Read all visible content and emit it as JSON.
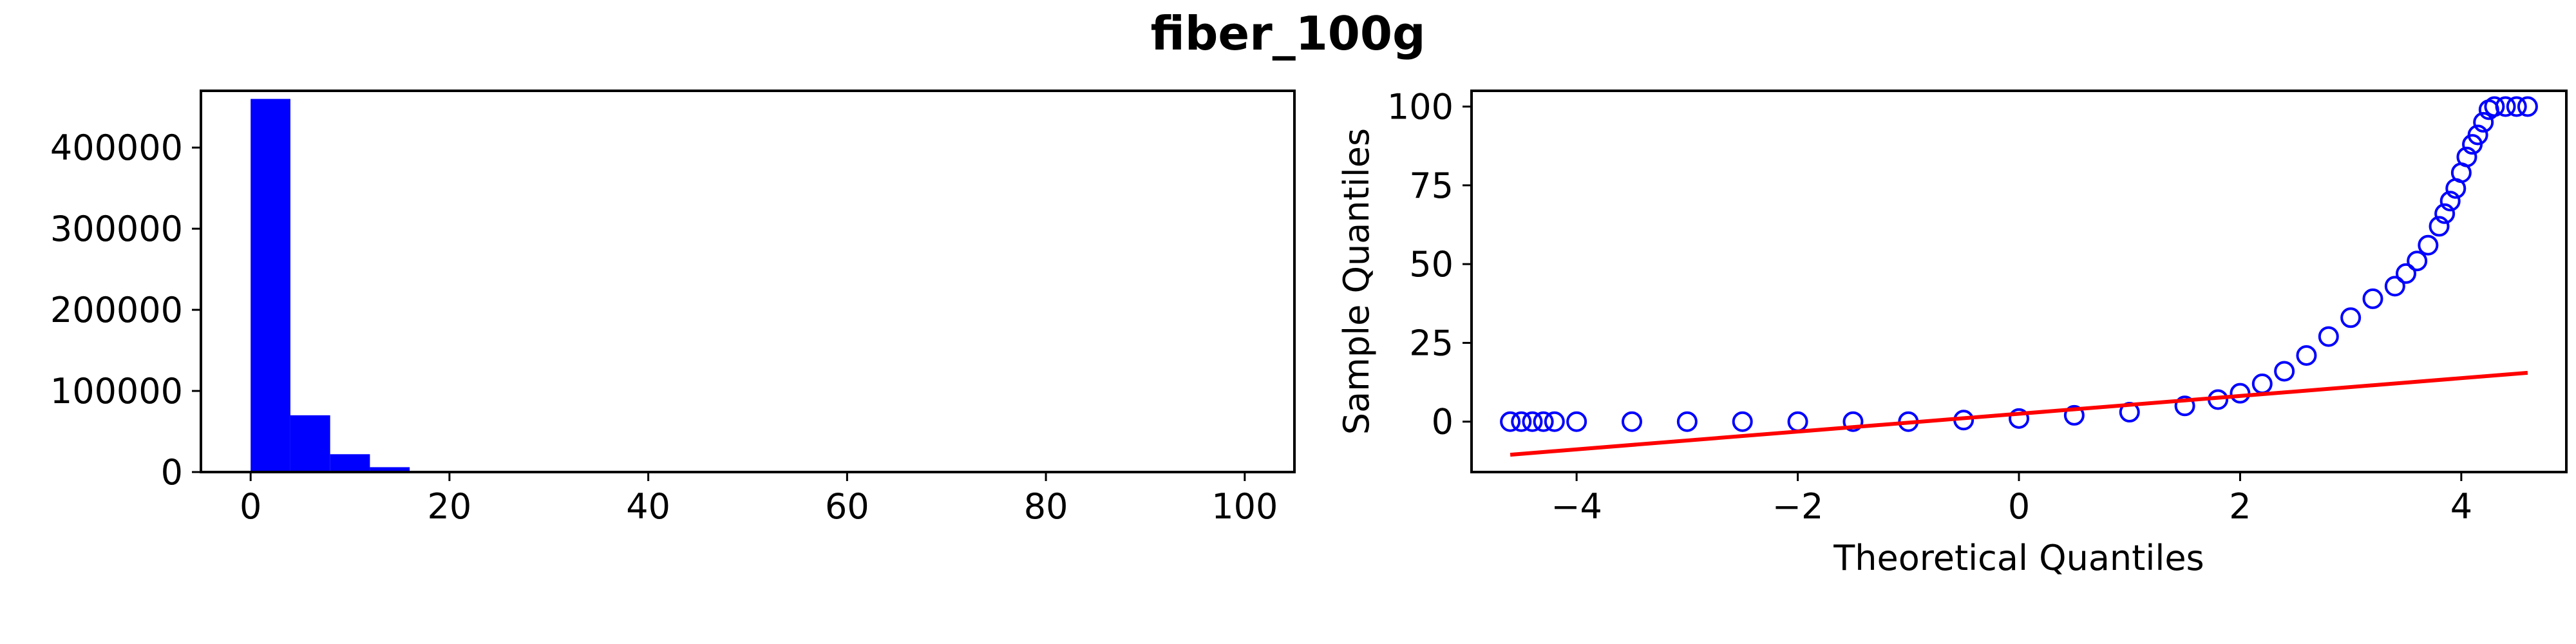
{
  "figure": {
    "title": "fiber_100g"
  },
  "colors": {
    "histogram": "#0000ff",
    "qq_points": "#0000ff",
    "qq_line": "#ff0000"
  },
  "chart_data": [
    {
      "type": "bar",
      "title": "",
      "xlabel": "",
      "ylabel": "",
      "bins": [
        {
          "x0": 0,
          "x1": 4,
          "count": 460000
        },
        {
          "x0": 4,
          "x1": 8,
          "count": 70000
        },
        {
          "x0": 8,
          "x1": 12,
          "count": 22000
        },
        {
          "x0": 12,
          "x1": 16,
          "count": 6000
        },
        {
          "x0": 16,
          "x1": 20,
          "count": 1200
        },
        {
          "x0": 20,
          "x1": 24,
          "count": 400
        }
      ],
      "xlim": [
        -5,
        105
      ],
      "ylim": [
        0,
        470000
      ],
      "xticks": [
        0,
        20,
        40,
        60,
        80,
        100
      ],
      "yticks": [
        0,
        100000,
        200000,
        300000,
        400000
      ],
      "xtick_labels": [
        "0",
        "20",
        "40",
        "60",
        "80",
        "100"
      ],
      "ytick_labels": [
        "0",
        "100000",
        "200000",
        "300000",
        "400000"
      ],
      "grid": false
    },
    {
      "type": "scatter",
      "title": "",
      "xlabel": "Theoretical Quantiles",
      "ylabel": "Sample Quantiles",
      "series": [
        {
          "marker": "open-circle",
          "x": [
            -4.6,
            -4.5,
            -4.4,
            -4.3,
            -4.2,
            -4.0,
            -3.5,
            -3.0,
            -2.5,
            -2.0,
            -1.5,
            -1.0,
            -0.5,
            0.0,
            0.5,
            1.0,
            1.5,
            1.8,
            2.0,
            2.2,
            2.4,
            2.6,
            2.8,
            3.0,
            3.2,
            3.4,
            3.5,
            3.6,
            3.7,
            3.8,
            3.85,
            3.9,
            3.95,
            4.0,
            4.05,
            4.1,
            4.15,
            4.2,
            4.25,
            4.3,
            4.4,
            4.5,
            4.6
          ],
          "y": [
            0,
            0,
            0,
            0,
            0,
            0,
            0,
            0,
            0,
            0,
            0,
            0,
            0.5,
            1,
            2,
            3,
            5,
            7,
            9,
            12,
            16,
            21,
            27,
            33,
            39,
            43,
            47,
            51,
            56,
            62,
            66,
            70,
            74,
            79,
            84,
            88,
            91,
            95,
            99,
            100,
            100,
            100,
            100
          ]
        }
      ],
      "reference_line": {
        "x": [
          -4.6,
          4.6
        ],
        "y": [
          -10.5,
          15.5
        ]
      },
      "xlim": [
        -4.95,
        4.95
      ],
      "ylim": [
        -16,
        105
      ],
      "xticks": [
        -4,
        -2,
        0,
        2,
        4
      ],
      "yticks": [
        0,
        25,
        50,
        75,
        100
      ],
      "xtick_labels": [
        "−4",
        "−2",
        "0",
        "2",
        "4"
      ],
      "ytick_labels": [
        "0",
        "25",
        "50",
        "75",
        "100"
      ],
      "grid": false
    }
  ]
}
